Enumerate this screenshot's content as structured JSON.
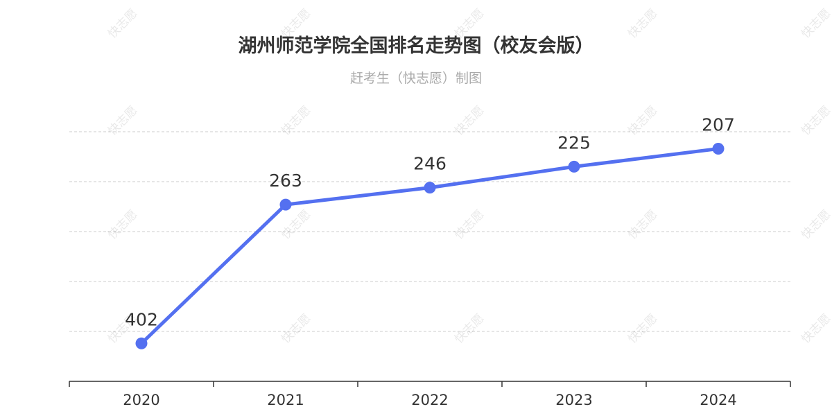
{
  "watermark_text": "快志愿",
  "colors": {
    "line": "#5470f0",
    "title": "#333333",
    "subtitle": "#aaaaaa",
    "grid": "#cccccc",
    "axis": "#333333",
    "label": "#333333"
  },
  "chart_data": {
    "type": "line",
    "title": "湖州师范学院全国排名走势图（校友会版）",
    "subtitle": "赶考生（快志愿）制图",
    "categories": [
      "2020",
      "2021",
      "2022",
      "2023",
      "2024"
    ],
    "series": [
      {
        "values": [
          402,
          263,
          246,
          225,
          207
        ]
      }
    ],
    "y_inverse": true,
    "ylim": [
      190,
      440
    ],
    "grid": true,
    "legend": false,
    "data_labels": true
  }
}
